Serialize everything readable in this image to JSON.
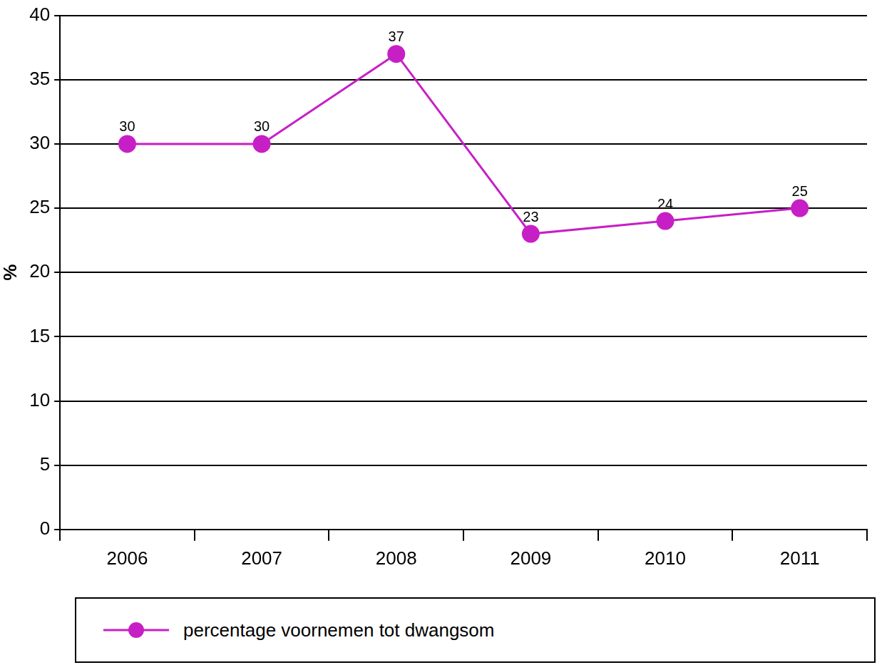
{
  "chart_data": {
    "type": "line",
    "categories": [
      "2006",
      "2007",
      "2008",
      "2009",
      "2010",
      "2011"
    ],
    "series": [
      {
        "name": "percentage voornemen tot dwangsom",
        "color": "#c71fc6",
        "values": [
          30,
          30,
          37,
          23,
          24,
          25
        ],
        "marker": "circle"
      }
    ],
    "ylabel": "%",
    "ylim": [
      0,
      40
    ],
    "yticks": [
      0,
      5,
      10,
      15,
      20,
      25,
      30,
      35,
      40
    ],
    "grid": true,
    "data_labels": true,
    "legend": "bottom"
  }
}
